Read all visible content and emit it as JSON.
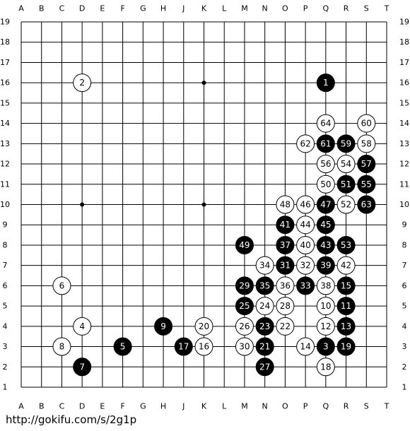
{
  "board": {
    "columns": [
      "A",
      "B",
      "C",
      "D",
      "E",
      "F",
      "G",
      "H",
      "J",
      "K",
      "L",
      "M",
      "N",
      "O",
      "P",
      "Q",
      "R",
      "S",
      "T"
    ],
    "rows": [
      19,
      18,
      17,
      16,
      15,
      14,
      13,
      12,
      11,
      10,
      9,
      8,
      7,
      6,
      5,
      4,
      3,
      2,
      1
    ],
    "star_points": [
      {
        "col": "D",
        "row": 16
      },
      {
        "col": "K",
        "row": 16
      },
      {
        "col": "Q",
        "row": 16
      },
      {
        "col": "D",
        "row": 10
      },
      {
        "col": "K",
        "row": 10
      },
      {
        "col": "Q",
        "row": 10
      },
      {
        "col": "D",
        "row": 4
      },
      {
        "col": "K",
        "row": 4
      },
      {
        "col": "Q",
        "row": 4
      }
    ],
    "stones": [
      {
        "move": 1,
        "color": "black",
        "col": "Q",
        "row": 16
      },
      {
        "move": 2,
        "color": "white",
        "col": "D",
        "row": 16
      },
      {
        "move": 3,
        "color": "black",
        "col": "Q",
        "row": 3
      },
      {
        "move": 4,
        "color": "white",
        "col": "D",
        "row": 4
      },
      {
        "move": 5,
        "color": "black",
        "col": "F",
        "row": 3
      },
      {
        "move": 6,
        "color": "white",
        "col": "C",
        "row": 6
      },
      {
        "move": 7,
        "color": "black",
        "col": "D",
        "row": 2
      },
      {
        "move": 8,
        "color": "white",
        "col": "C",
        "row": 3
      },
      {
        "move": 9,
        "color": "black",
        "col": "H",
        "row": 4
      },
      {
        "move": 10,
        "color": "white",
        "col": "Q",
        "row": 5
      },
      {
        "move": 11,
        "color": "black",
        "col": "R",
        "row": 5
      },
      {
        "move": 12,
        "color": "white",
        "col": "Q",
        "row": 4
      },
      {
        "move": 13,
        "color": "black",
        "col": "R",
        "row": 4
      },
      {
        "move": 14,
        "color": "white",
        "col": "P",
        "row": 3
      },
      {
        "move": 15,
        "color": "black",
        "col": "R",
        "row": 6
      },
      {
        "move": 16,
        "color": "white",
        "col": "K",
        "row": 3
      },
      {
        "move": 17,
        "color": "black",
        "col": "J",
        "row": 3
      },
      {
        "move": 18,
        "color": "white",
        "col": "Q",
        "row": 2
      },
      {
        "move": 19,
        "color": "black",
        "col": "R",
        "row": 3
      },
      {
        "move": 20,
        "color": "white",
        "col": "K",
        "row": 4
      },
      {
        "move": 21,
        "color": "black",
        "col": "N",
        "row": 3
      },
      {
        "move": 22,
        "color": "white",
        "col": "O",
        "row": 4
      },
      {
        "move": 23,
        "color": "black",
        "col": "N",
        "row": 4
      },
      {
        "move": 24,
        "color": "white",
        "col": "N",
        "row": 5
      },
      {
        "move": 25,
        "color": "black",
        "col": "M",
        "row": 5
      },
      {
        "move": 26,
        "color": "white",
        "col": "M",
        "row": 4
      },
      {
        "move": 27,
        "color": "black",
        "col": "N",
        "row": 2
      },
      {
        "move": 28,
        "color": "white",
        "col": "O",
        "row": 5
      },
      {
        "move": 29,
        "color": "black",
        "col": "M",
        "row": 6
      },
      {
        "move": 30,
        "color": "white",
        "col": "M",
        "row": 3
      },
      {
        "move": 31,
        "color": "black",
        "col": "O",
        "row": 7
      },
      {
        "move": 32,
        "color": "white",
        "col": "P",
        "row": 7
      },
      {
        "move": 33,
        "color": "black",
        "col": "P",
        "row": 6
      },
      {
        "move": 34,
        "color": "white",
        "col": "N",
        "row": 7
      },
      {
        "move": 35,
        "color": "black",
        "col": "N",
        "row": 6
      },
      {
        "move": 36,
        "color": "white",
        "col": "O",
        "row": 6
      },
      {
        "move": 37,
        "color": "black",
        "col": "O",
        "row": 8
      },
      {
        "move": 38,
        "color": "white",
        "col": "Q",
        "row": 6
      },
      {
        "move": 39,
        "color": "black",
        "col": "Q",
        "row": 7
      },
      {
        "move": 40,
        "color": "white",
        "col": "P",
        "row": 8
      },
      {
        "move": 41,
        "color": "black",
        "col": "O",
        "row": 9
      },
      {
        "move": 42,
        "color": "white",
        "col": "R",
        "row": 7
      },
      {
        "move": 43,
        "color": "black",
        "col": "Q",
        "row": 8
      },
      {
        "move": 44,
        "color": "white",
        "col": "P",
        "row": 9
      },
      {
        "move": 45,
        "color": "black",
        "col": "Q",
        "row": 9
      },
      {
        "move": 46,
        "color": "white",
        "col": "P",
        "row": 10
      },
      {
        "move": 47,
        "color": "black",
        "col": "Q",
        "row": 10
      },
      {
        "move": 48,
        "color": "white",
        "col": "O",
        "row": 10
      },
      {
        "move": 49,
        "color": "black",
        "col": "M",
        "row": 8
      },
      {
        "move": 50,
        "color": "white",
        "col": "Q",
        "row": 11
      },
      {
        "move": 51,
        "color": "black",
        "col": "R",
        "row": 11
      },
      {
        "move": 52,
        "color": "white",
        "col": "R",
        "row": 10
      },
      {
        "move": 53,
        "color": "black",
        "col": "R",
        "row": 8
      },
      {
        "move": 54,
        "color": "white",
        "col": "R",
        "row": 12
      },
      {
        "move": 55,
        "color": "black",
        "col": "S",
        "row": 11
      },
      {
        "move": 56,
        "color": "white",
        "col": "Q",
        "row": 12
      },
      {
        "move": 57,
        "color": "black",
        "col": "S",
        "row": 12
      },
      {
        "move": 58,
        "color": "white",
        "col": "S",
        "row": 13
      },
      {
        "move": 59,
        "color": "black",
        "col": "R",
        "row": 13
      },
      {
        "move": 60,
        "color": "white",
        "col": "S",
        "row": 14
      },
      {
        "move": 61,
        "color": "black",
        "col": "Q",
        "row": 13
      },
      {
        "move": 62,
        "color": "white",
        "col": "P",
        "row": 13
      },
      {
        "move": 63,
        "color": "black",
        "col": "S",
        "row": 10
      },
      {
        "move": 64,
        "color": "white",
        "col": "Q",
        "row": 14
      }
    ]
  },
  "footer": {
    "url": "http://gokifu.com/s/2g1p"
  }
}
